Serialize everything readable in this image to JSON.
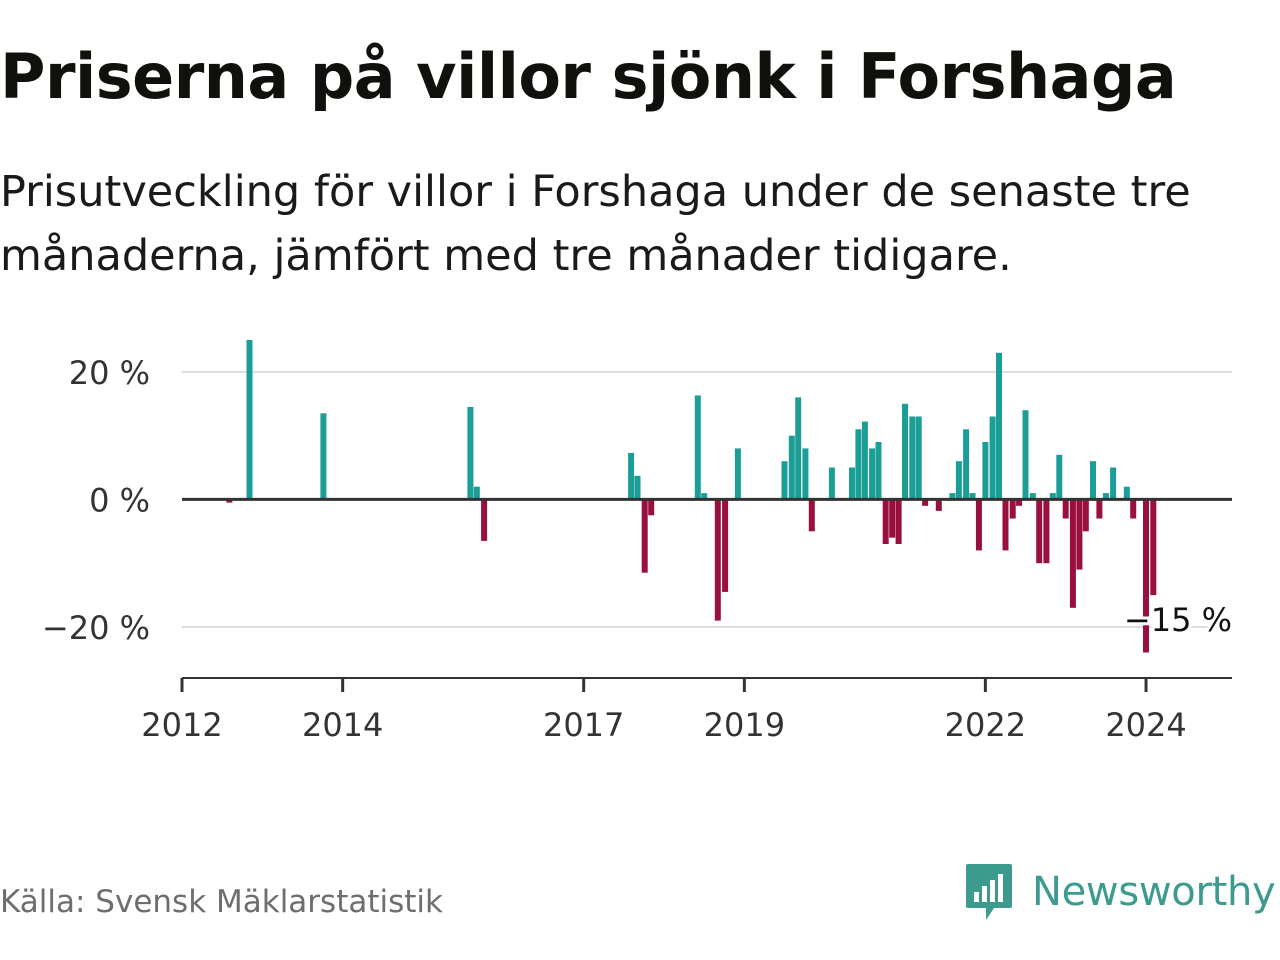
{
  "header": {
    "title": "Priserna på villor sjönk i Forshaga",
    "subtitle": "Prisutveckling för villor i Forshaga under de senaste tre månaderna, jämfört med tre månader tidigare."
  },
  "footer": {
    "source": "Källa: Svensk Mäklarstatistik",
    "brand": "Newsworthy"
  },
  "colors": {
    "positive": "#1a9e96",
    "negative": "#990f3d",
    "axis": "#333333",
    "grid": "#dddddd",
    "brand": "#3c9b8e"
  },
  "chart_data": {
    "type": "bar",
    "title": "Priserna på villor sjönk i Forshaga",
    "xlabel": "",
    "ylabel": "",
    "ylim": [
      -28,
      25
    ],
    "grid": true,
    "y_ticks": [
      {
        "value": 20,
        "label": "20 %"
      },
      {
        "value": 0,
        "label": "0 %"
      },
      {
        "value": -20,
        "label": "−20 %"
      }
    ],
    "x_ticks": [
      {
        "value": 2012,
        "label": "2012"
      },
      {
        "value": 2014,
        "label": "2014"
      },
      {
        "value": 2017,
        "label": "2017"
      },
      {
        "value": 2019,
        "label": "2019"
      },
      {
        "value": 2022,
        "label": "2022"
      },
      {
        "value": 2024,
        "label": "2024"
      }
    ],
    "x_range": [
      2012,
      2025.07
    ],
    "series": [
      {
        "name": "Prisutveckling",
        "unit": "%",
        "points": [
          {
            "x": 2012.59,
            "y": -0.5
          },
          {
            "x": 2012.84,
            "y": 25
          },
          {
            "x": 2013.76,
            "y": 13.5
          },
          {
            "x": 2015.59,
            "y": 14.5
          },
          {
            "x": 2015.67,
            "y": 2
          },
          {
            "x": 2015.76,
            "y": -6.5
          },
          {
            "x": 2017.59,
            "y": 7.3
          },
          {
            "x": 2017.67,
            "y": 3.7
          },
          {
            "x": 2017.76,
            "y": -11.5
          },
          {
            "x": 2017.84,
            "y": -2.5
          },
          {
            "x": 2018.42,
            "y": 16.3
          },
          {
            "x": 2018.5,
            "y": 1
          },
          {
            "x": 2018.67,
            "y": -19
          },
          {
            "x": 2018.76,
            "y": -14.5
          },
          {
            "x": 2018.92,
            "y": 8
          },
          {
            "x": 2019.5,
            "y": 6
          },
          {
            "x": 2019.59,
            "y": 10
          },
          {
            "x": 2019.67,
            "y": 16
          },
          {
            "x": 2019.76,
            "y": 8
          },
          {
            "x": 2019.84,
            "y": -5
          },
          {
            "x": 2020.09,
            "y": 5
          },
          {
            "x": 2020.34,
            "y": 5
          },
          {
            "x": 2020.42,
            "y": 11
          },
          {
            "x": 2020.5,
            "y": 12.2
          },
          {
            "x": 2020.59,
            "y": 8
          },
          {
            "x": 2020.67,
            "y": 9
          },
          {
            "x": 2020.76,
            "y": -7
          },
          {
            "x": 2020.84,
            "y": -6
          },
          {
            "x": 2020.92,
            "y": -7
          },
          {
            "x": 2021.0,
            "y": 15
          },
          {
            "x": 2021.09,
            "y": 13
          },
          {
            "x": 2021.17,
            "y": 13
          },
          {
            "x": 2021.25,
            "y": -1
          },
          {
            "x": 2021.42,
            "y": -1.8
          },
          {
            "x": 2021.59,
            "y": 1
          },
          {
            "x": 2021.67,
            "y": 6
          },
          {
            "x": 2021.76,
            "y": 11
          },
          {
            "x": 2021.84,
            "y": 1
          },
          {
            "x": 2021.92,
            "y": -8
          },
          {
            "x": 2022.0,
            "y": 9
          },
          {
            "x": 2022.09,
            "y": 13
          },
          {
            "x": 2022.17,
            "y": 23
          },
          {
            "x": 2022.25,
            "y": -8
          },
          {
            "x": 2022.34,
            "y": -3
          },
          {
            "x": 2022.42,
            "y": -1
          },
          {
            "x": 2022.5,
            "y": 14
          },
          {
            "x": 2022.59,
            "y": 1
          },
          {
            "x": 2022.67,
            "y": -10
          },
          {
            "x": 2022.76,
            "y": -10
          },
          {
            "x": 2022.84,
            "y": 1
          },
          {
            "x": 2022.92,
            "y": 7
          },
          {
            "x": 2023.0,
            "y": -3
          },
          {
            "x": 2023.09,
            "y": -17
          },
          {
            "x": 2023.17,
            "y": -11
          },
          {
            "x": 2023.25,
            "y": -5
          },
          {
            "x": 2023.34,
            "y": 6
          },
          {
            "x": 2023.42,
            "y": -3
          },
          {
            "x": 2023.5,
            "y": 1
          },
          {
            "x": 2023.59,
            "y": 5
          },
          {
            "x": 2023.67,
            "y": 0
          },
          {
            "x": 2023.76,
            "y": 2
          },
          {
            "x": 2023.84,
            "y": -3
          },
          {
            "x": 2024.0,
            "y": -24
          },
          {
            "x": 2024.09,
            "y": -15
          }
        ]
      }
    ],
    "annotations": [
      {
        "x": 2024.09,
        "y": -15,
        "text": "−15 %"
      }
    ]
  }
}
